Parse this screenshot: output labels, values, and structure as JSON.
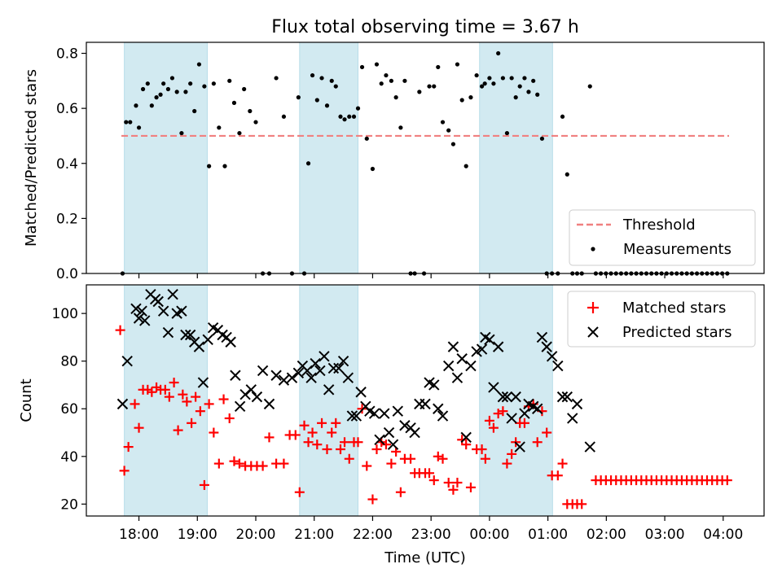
{
  "figure": {
    "title": "Flux total observing time = 3.67 h",
    "xlabel": "Time (UTC)"
  },
  "chart_data": [
    {
      "type": "scatter",
      "panel": "top",
      "ylabel": "Matched/Predicted stars",
      "ylim": [
        0,
        0.84
      ],
      "xlim_hours": [
        17.1,
        28.7
      ],
      "yticks": [
        0.0,
        0.2,
        0.4,
        0.6,
        0.8
      ],
      "ytick_labels": [
        "0.0",
        "0.2",
        "0.4",
        "0.6",
        "0.8"
      ],
      "xticks": [
        18,
        19,
        20,
        21,
        22,
        23,
        24,
        25,
        26,
        27,
        28
      ],
      "xtick_labels": [
        "18:00",
        "19:00",
        "20:00",
        "21:00",
        "22:00",
        "23:00",
        "00:00",
        "01:00",
        "02:00",
        "03:00",
        "04:00"
      ],
      "shaded_intervals_hours": [
        [
          17.75,
          19.17
        ],
        [
          20.75,
          21.75
        ],
        [
          23.83,
          25.08
        ]
      ],
      "shade_color": "#add8e6",
      "threshold": {
        "name": "Threshold",
        "value": 0.5,
        "x_range_hours": [
          17.7,
          28.1
        ],
        "color": "#f08080"
      },
      "measurements": {
        "name": "Measurements",
        "color": "#000000",
        "x": [
          17.72,
          17.78,
          17.85,
          17.95,
          18.0,
          18.07,
          18.15,
          18.22,
          18.3,
          18.37,
          18.42,
          18.5,
          18.57,
          18.65,
          18.73,
          18.8,
          18.88,
          18.95,
          19.03,
          19.12,
          19.2,
          19.28,
          19.37,
          19.47,
          19.55,
          19.63,
          19.72,
          19.8,
          19.9,
          20.0,
          20.12,
          20.23,
          20.35,
          20.48,
          20.62,
          20.73,
          20.83,
          20.9,
          20.97,
          21.05,
          21.13,
          21.22,
          21.3,
          21.37,
          21.45,
          21.52,
          21.6,
          21.68,
          21.75,
          21.82,
          21.9,
          22.0,
          22.07,
          22.15,
          22.23,
          22.32,
          22.4,
          22.48,
          22.55,
          22.65,
          22.72,
          22.8,
          22.88,
          22.97,
          23.05,
          23.12,
          23.2,
          23.3,
          23.38,
          23.45,
          23.53,
          23.6,
          23.68,
          23.78,
          23.87,
          23.92,
          24.0,
          24.07,
          24.15,
          24.23,
          24.3,
          24.38,
          24.45,
          24.52,
          24.6,
          24.67,
          24.75,
          24.82,
          24.9,
          24.98,
          25.07,
          25.17,
          25.25,
          25.33,
          25.42,
          25.5,
          25.58,
          25.72
        ],
        "y": [
          0.0,
          0.55,
          0.55,
          0.61,
          0.53,
          0.67,
          0.69,
          0.61,
          0.64,
          0.65,
          0.69,
          0.67,
          0.71,
          0.66,
          0.51,
          0.66,
          0.69,
          0.59,
          0.76,
          0.68,
          0.39,
          0.69,
          0.53,
          0.39,
          0.7,
          0.62,
          0.51,
          0.67,
          0.59,
          0.55,
          0.0,
          0.0,
          0.71,
          0.57,
          0.0,
          0.64,
          0.0,
          0.4,
          0.72,
          0.63,
          0.71,
          0.61,
          0.7,
          0.68,
          0.57,
          0.56,
          0.57,
          0.57,
          0.6,
          0.75,
          0.49,
          0.38,
          0.76,
          0.69,
          0.72,
          0.7,
          0.64,
          0.53,
          0.7,
          0.0,
          0.0,
          0.66,
          0.0,
          0.68,
          0.68,
          0.75,
          0.55,
          0.52,
          0.47,
          0.76,
          0.63,
          0.39,
          0.64,
          0.72,
          0.68,
          0.69,
          0.71,
          0.69,
          0.8,
          0.71,
          0.51,
          0.71,
          0.64,
          0.68,
          0.71,
          0.66,
          0.7,
          0.65,
          0.49,
          0.0,
          0.0,
          0.0,
          0.57,
          0.36,
          0.0,
          0.0,
          0.0,
          0.68
        ]
      },
      "zero_run": {
        "x_start_hours": 25.82,
        "x_end_hours": 28.07,
        "count": 27,
        "y": 0.0
      },
      "legend": {
        "location": "lower right",
        "entries": [
          "Threshold",
          "Measurements"
        ]
      }
    },
    {
      "type": "scatter",
      "panel": "bottom",
      "ylabel": "Count",
      "ylim": [
        15,
        112
      ],
      "yticks": [
        20,
        40,
        60,
        80,
        100
      ],
      "ytick_labels": [
        "20",
        "40",
        "60",
        "80",
        "100"
      ],
      "xticks": [
        18,
        19,
        20,
        21,
        22,
        23,
        24,
        25,
        26,
        27,
        28
      ],
      "xtick_labels": [
        "18:00",
        "19:00",
        "20:00",
        "21:00",
        "22:00",
        "23:00",
        "00:00",
        "01:00",
        "02:00",
        "03:00",
        "04:00"
      ],
      "series": [
        {
          "name": "Matched stars",
          "marker": "+",
          "color": "#ff0000",
          "x": [
            17.68,
            17.75,
            17.82,
            17.93,
            18.0,
            18.07,
            18.15,
            18.22,
            18.3,
            18.37,
            18.45,
            18.52,
            18.6,
            18.67,
            18.75,
            18.82,
            18.9,
            18.97,
            19.05,
            19.12,
            19.2,
            19.28,
            19.37,
            19.45,
            19.55,
            19.63,
            19.72,
            19.82,
            19.92,
            20.02,
            20.12,
            20.23,
            20.35,
            20.48,
            20.58,
            20.68,
            20.75,
            20.83,
            20.9,
            20.97,
            21.05,
            21.13,
            21.22,
            21.3,
            21.37,
            21.45,
            21.52,
            21.6,
            21.68,
            21.75,
            21.82,
            21.9,
            22.0,
            22.07,
            22.15,
            22.23,
            22.32,
            22.4,
            22.48,
            22.55,
            22.65,
            22.72,
            22.8,
            22.9,
            22.97,
            23.05,
            23.12,
            23.2,
            23.3,
            23.38,
            23.45,
            23.53,
            23.6,
            23.68,
            23.78,
            23.87,
            23.93,
            24.0,
            24.07,
            24.15,
            24.23,
            24.3,
            24.38,
            24.45,
            24.52,
            24.6,
            24.67,
            24.75,
            24.82,
            24.9,
            24.98,
            25.07,
            25.17,
            25.25,
            25.33,
            25.42,
            25.5,
            25.58
          ],
          "y": [
            93,
            34,
            44,
            62,
            52,
            68,
            68,
            67,
            69,
            68,
            68,
            65,
            71,
            51,
            66,
            63,
            54,
            65,
            59,
            28,
            62,
            50,
            37,
            64,
            56,
            38,
            37,
            36,
            36,
            36,
            36,
            48,
            37,
            37,
            49,
            49,
            25,
            53,
            46,
            50,
            45,
            54,
            43,
            50,
            54,
            43,
            46,
            39,
            46,
            46,
            60,
            36,
            22,
            43,
            46,
            45,
            37,
            42,
            25,
            39,
            39,
            33,
            33,
            33,
            33,
            30,
            40,
            39,
            29,
            26,
            29,
            47,
            45,
            27,
            43,
            43,
            39,
            55,
            52,
            58,
            59,
            37,
            41,
            46,
            54,
            54,
            61,
            62,
            46,
            59,
            50,
            32,
            32,
            37,
            20,
            20,
            20,
            20
          ]
        },
        {
          "name": "Predicted stars",
          "marker": "x",
          "color": "#000000",
          "x": [
            17.72,
            17.8,
            17.95,
            18.0,
            18.05,
            18.1,
            18.2,
            18.28,
            18.33,
            18.42,
            18.5,
            18.58,
            18.65,
            18.73,
            18.8,
            18.88,
            18.95,
            19.03,
            19.1,
            19.18,
            19.27,
            19.35,
            19.43,
            19.5,
            19.57,
            19.65,
            19.73,
            19.82,
            19.92,
            20.02,
            20.12,
            20.23,
            20.35,
            20.48,
            20.62,
            20.73,
            20.8,
            20.88,
            20.95,
            21.02,
            21.1,
            21.17,
            21.25,
            21.33,
            21.42,
            21.5,
            21.58,
            21.65,
            21.72,
            21.8,
            21.88,
            21.95,
            22.03,
            22.12,
            22.2,
            22.28,
            22.35,
            22.43,
            22.55,
            22.65,
            22.72,
            22.8,
            22.9,
            22.97,
            23.05,
            23.12,
            23.2,
            23.3,
            23.38,
            23.45,
            23.53,
            23.6,
            23.68,
            23.78,
            23.87,
            23.93,
            24.0,
            24.07,
            24.15,
            24.23,
            24.3,
            24.38,
            24.45,
            24.52,
            24.6,
            24.67,
            24.75,
            24.82,
            24.9,
            24.98,
            25.07,
            25.17,
            25.25,
            25.33,
            25.42,
            25.5,
            25.72
          ],
          "y": [
            62,
            80,
            102,
            98,
            101,
            97,
            108,
            106,
            105,
            101,
            92,
            108,
            100,
            101,
            91,
            91,
            88,
            86,
            71,
            89,
            94,
            93,
            91,
            90,
            88,
            74,
            61,
            66,
            68,
            65,
            76,
            62,
            74,
            72,
            73,
            75,
            78,
            76,
            73,
            79,
            76,
            82,
            68,
            77,
            77,
            80,
            73,
            57,
            57,
            67,
            61,
            59,
            58,
            47,
            58,
            50,
            45,
            59,
            53,
            52,
            50,
            62,
            62,
            71,
            70,
            60,
            57,
            78,
            86,
            73,
            81,
            48,
            78,
            84,
            85,
            90,
            89,
            69,
            86,
            65,
            65,
            56,
            65,
            44,
            58,
            62,
            61,
            60,
            90,
            86,
            82,
            78,
            65,
            65,
            56,
            62,
            44
          ]
        }
      ],
      "legend": {
        "location": "upper right",
        "entries": [
          "Matched stars",
          "Predicted stars"
        ]
      }
    }
  ]
}
